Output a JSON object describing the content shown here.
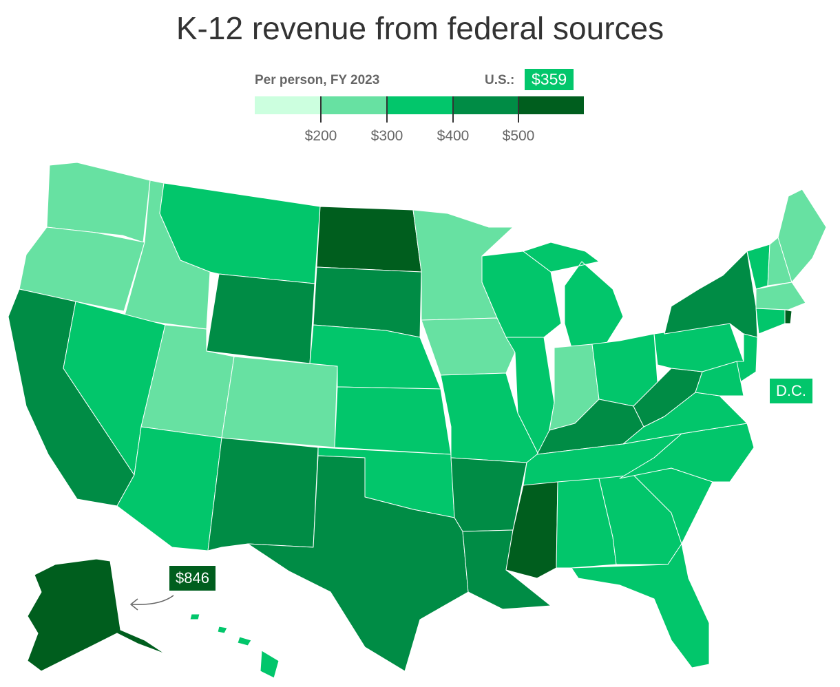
{
  "title": "K-12 revenue from federal sources",
  "legend": {
    "label": "Per person, FY 2023",
    "us_label": "U.S.:",
    "us_value": "$359",
    "bins": [
      "#ccffdf",
      "#67e1a2",
      "#02c66b",
      "#02c66b",
      "#008c45",
      "#005e1e"
    ],
    "ticks": [
      "$200",
      "$300",
      "$400",
      "$500"
    ]
  },
  "colors": {
    "c1": "#67e1a2",
    "c2": "#02c66b",
    "c3": "#008c45",
    "c4": "#005e1e"
  },
  "annotations": {
    "dc": "D.C.",
    "alaska_value": "$846"
  }
}
